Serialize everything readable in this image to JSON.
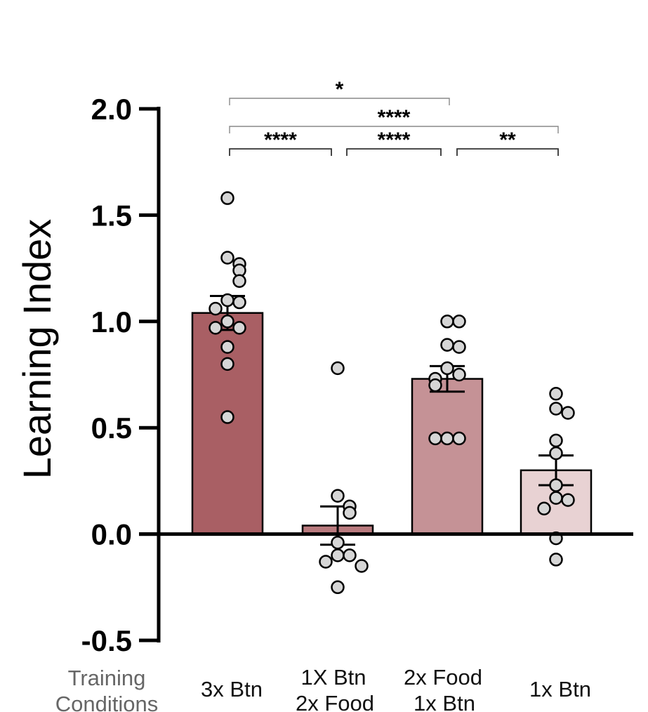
{
  "chart_data": {
    "type": "bar",
    "ylabel": "Learning Index",
    "ylim": [
      -0.5,
      2.0
    ],
    "yticks": [
      "-0.5",
      "0.0",
      "0.5",
      "1.0",
      "1.5",
      "2.0"
    ],
    "condition_label": [
      "Training",
      "Conditions"
    ],
    "categories": [
      {
        "lines": [
          "3x Btn"
        ],
        "mean": 1.04,
        "sem": 0.08,
        "color": "#a95f64",
        "points": [
          1.58,
          1.3,
          1.24,
          1.27,
          1.19,
          1.09,
          1.1,
          1.06,
          1.0,
          0.97,
          0.97,
          0.88,
          0.8,
          0.55
        ]
      },
      {
        "lines": [
          "1X Btn",
          "2x Food"
        ],
        "mean": 0.04,
        "sem": 0.09,
        "color": "#b97a7e",
        "points": [
          0.78,
          0.18,
          0.13,
          0.1,
          -0.04,
          -0.1,
          -0.1,
          -0.13,
          -0.15,
          -0.25
        ]
      },
      {
        "lines": [
          "2x Food",
          "1x Btn"
        ],
        "mean": 0.73,
        "sem": 0.06,
        "color": "#c59296",
        "points": [
          1.0,
          1.0,
          0.89,
          0.88,
          0.78,
          0.75,
          0.73,
          0.7,
          0.45,
          0.45,
          0.45
        ]
      },
      {
        "lines": [
          "1x Btn"
        ],
        "mean": 0.3,
        "sem": 0.07,
        "color": "#e8d2d3",
        "points": [
          0.66,
          0.59,
          0.57,
          0.44,
          0.38,
          0.23,
          0.17,
          0.16,
          0.12,
          -0.02,
          -0.12
        ]
      }
    ],
    "significance": [
      {
        "from": 0,
        "to": 2,
        "label": "*",
        "level": 3
      },
      {
        "from": 0,
        "to": 3,
        "label": "****",
        "level": 2
      },
      {
        "from": 0,
        "to": 1,
        "label": "****",
        "level": 1
      },
      {
        "from": 1,
        "to": 2,
        "label": "****",
        "level": 1
      },
      {
        "from": 2,
        "to": 3,
        "label": "**",
        "level": 1
      }
    ]
  }
}
